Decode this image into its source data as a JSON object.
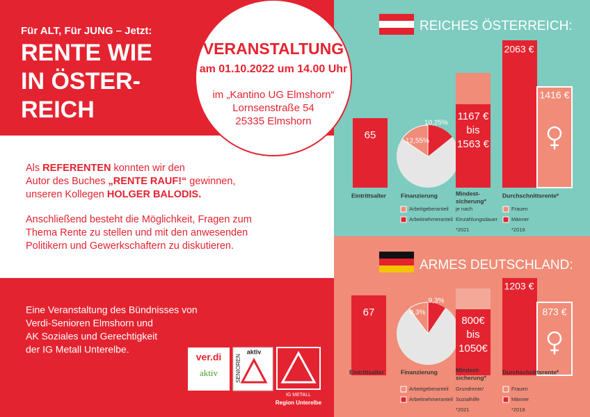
{
  "header": {
    "kicker": "Für ALT, Für JUNG – Jetzt:",
    "title_lines": [
      "RENTE WIE",
      "IN ÖSTER-",
      "REICH"
    ]
  },
  "event": {
    "title": "VERANSTALTUNG",
    "date": "am 01.10.2022 um 14.00 Uhr",
    "venue": [
      "im „Kantino UG Elmshorn“",
      "Lornsenstraße 54",
      "25335 Elmshorn"
    ]
  },
  "body": {
    "paragraphs": [
      [
        [
          {
            "text": "Als "
          },
          {
            "text": "REFERENTEN",
            "bold": true
          },
          {
            "text": " konnten wir den"
          }
        ],
        [
          {
            "text": "Autor des Buches "
          },
          {
            "text": "„RENTE RAUF!“",
            "bold": true
          },
          {
            "text": " gewinnen,"
          }
        ],
        [
          {
            "text": "unseren Kollegen "
          },
          {
            "text": "HOLGER BALODIS.",
            "bold": true
          }
        ]
      ],
      [
        [
          {
            "text": "Anschließend besteht die  Möglichkeit, Fragen zum"
          }
        ],
        [
          {
            "text": "Thema Rente zu stellen und mit den anwesenden"
          }
        ],
        [
          {
            "text": "Politikern und Gewerkschaftern zu diskutieren."
          }
        ]
      ]
    ]
  },
  "footer": {
    "lines": [
      "Eine Veranstaltung des Bündnisses von",
      "Verdi-Senioren Elmshorn und",
      "AK Soziales und  Gerechtigkeit",
      "der IG Metall Unterelbe."
    ],
    "logos": {
      "verdi": [
        "ver.di",
        "aktiv"
      ],
      "senioren": [
        "SENIOREN",
        "aktiv"
      ],
      "igmetall": [
        "IG METALL",
        "Region Unterelbe"
      ]
    }
  },
  "panels": [
    {
      "heading": "REICHES ÖSTERREICH:",
      "entry_age": "65",
      "pie_labels": [
        "12,55%",
        "10,25%"
      ],
      "minimum": [
        "1167 €",
        "bis",
        "1563 €"
      ],
      "average": [
        "2063 €",
        "1416 €"
      ],
      "labels": [
        "Eintrittsalter",
        "Finanzierung",
        "Mindest-",
        "sicherung*",
        "Durchschnittsrente*"
      ],
      "legend_financing": [
        "Arbeitgeberanteil",
        "Arbeitnehmeranteil"
      ],
      "legend_minimum": [
        "je nach",
        "Einzahlungsdauer",
        "*2021"
      ],
      "legend_average": [
        "Frauen",
        "Männer",
        "*2019"
      ]
    },
    {
      "heading": "ARMES DEUTSCHLAND:",
      "entry_age": "67",
      "pie_labels": [
        "9,3%",
        "9,3%"
      ],
      "minimum": [
        "800€",
        "bis",
        "1050€"
      ],
      "average": [
        "1203 €",
        "873 €"
      ],
      "labels": [
        "Eintrittsalter",
        "Finanzierung",
        "Mindest-",
        "sicherung*",
        "Durchschnittsrente*"
      ],
      "legend_financing": [
        "Arbeitgeberanteil",
        "Arbeitnehmeranteil"
      ],
      "legend_minimum": [
        "Grundrente/",
        "Sozialhilfe",
        "*2021"
      ],
      "legend_average": [
        "Frauen",
        "Männer",
        "*2019"
      ]
    }
  ]
}
